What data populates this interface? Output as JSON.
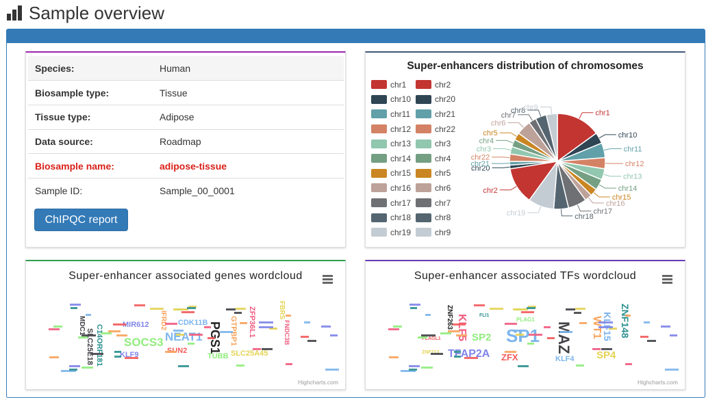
{
  "header": {
    "title": "Sample overview"
  },
  "info": {
    "rows": [
      {
        "key": "Species:",
        "value": "Human"
      },
      {
        "key": "Biosample type:",
        "value": "Tissue"
      },
      {
        "key": "Tissue type:",
        "value": "Adipose"
      },
      {
        "key": "Data source:",
        "value": "Roadmap"
      },
      {
        "key": "Biosample name:",
        "value": "adipose-tissue"
      },
      {
        "key": "Sample ID:",
        "value": "Sample_00_0001"
      }
    ],
    "button_label": "ChIPQC report"
  },
  "colors": {
    "heading": "#337ab7",
    "highlight": "#d9201a"
  },
  "chart_data": {
    "type": "pie",
    "title": "Super-enhancers distribution of chromosomes",
    "legend": [
      "chr1",
      "chr2",
      "chr10",
      "chr20",
      "chr11",
      "chr21",
      "chr12",
      "chr22",
      "chr13",
      "chr3",
      "chr14",
      "chr4",
      "chr15",
      "chr5",
      "chr16",
      "chr6",
      "chr17",
      "chr7",
      "chr18",
      "chr8",
      "chr19",
      "chr9"
    ],
    "slices": [
      {
        "name": "chr1",
        "value": 12,
        "color": "#c23531"
      },
      {
        "name": "chr10",
        "value": 3,
        "color": "#2f4554"
      },
      {
        "name": "chr11",
        "value": 4,
        "color": "#61a0a8"
      },
      {
        "name": "chr12",
        "value": 3,
        "color": "#d48265"
      },
      {
        "name": "chr13",
        "value": 3,
        "color": "#91c7ae"
      },
      {
        "name": "chr14",
        "value": 3,
        "color": "#749f83"
      },
      {
        "name": "chr15",
        "value": 2,
        "color": "#ca8622"
      },
      {
        "name": "chr16",
        "value": 2,
        "color": "#bda29a"
      },
      {
        "name": "chr17",
        "value": 5,
        "color": "#6e7074"
      },
      {
        "name": "chr18",
        "value": 4,
        "color": "#546570"
      },
      {
        "name": "chr19",
        "value": 7,
        "color": "#c4ccd3"
      },
      {
        "name": "chr2",
        "value": 10,
        "color": "#c23531"
      },
      {
        "name": "chr20",
        "value": 1,
        "color": "#2f4554"
      },
      {
        "name": "chr21",
        "value": 1,
        "color": "#61a0a8"
      },
      {
        "name": "chr22",
        "value": 2,
        "color": "#d48265"
      },
      {
        "name": "chr3",
        "value": 2,
        "color": "#91c7ae"
      },
      {
        "name": "chr4",
        "value": 2,
        "color": "#749f83"
      },
      {
        "name": "chr5",
        "value": 2,
        "color": "#ca8622"
      },
      {
        "name": "chr6",
        "value": 4,
        "color": "#bda29a"
      },
      {
        "name": "chr7",
        "value": 2,
        "color": "#6e7074"
      },
      {
        "name": "chr8",
        "value": 3,
        "color": "#546570"
      },
      {
        "name": "chr9",
        "value": 3,
        "color": "#c4ccd3"
      }
    ]
  },
  "genes_wordcloud": {
    "title": "Super-enhancer associated genes wordcloud",
    "credit": "Highcharts.com",
    "words": [
      {
        "text": "NEAT1",
        "color": "#7cb5ec",
        "size": 17
      },
      {
        "text": "SOCS3",
        "color": "#90ed7d",
        "size": 17
      },
      {
        "text": "PGS1",
        "color": "#222222",
        "size": 18
      },
      {
        "text": "CDK11B",
        "color": "#7cb5ec",
        "size": 11
      },
      {
        "text": "C14ORF181",
        "color": "#2b908f",
        "size": 11
      },
      {
        "text": "SLC25A45",
        "color": "#e4d354",
        "size": 11
      },
      {
        "text": "ZFP36L1",
        "color": "#f15c80",
        "size": 11
      },
      {
        "text": "MIR612",
        "color": "#8085e9",
        "size": 11
      },
      {
        "text": "KLF9",
        "color": "#8085e9",
        "size": 11
      },
      {
        "text": "SUN2",
        "color": "#f45b5b",
        "size": 11
      },
      {
        "text": "TUBB",
        "color": "#90ed7d",
        "size": 11
      },
      {
        "text": "GTPBP1",
        "color": "#f7a35c",
        "size": 11
      },
      {
        "text": "SLC25E18",
        "color": "#434348",
        "size": 11
      },
      {
        "text": "IFRD2",
        "color": "#f7a35c",
        "size": 10
      },
      {
        "text": "FBRS",
        "color": "#e4d354",
        "size": 10
      },
      {
        "text": "MDC1",
        "color": "#434348",
        "size": 10
      },
      {
        "text": "FNDC3B",
        "color": "#f15c80",
        "size": 9
      }
    ]
  },
  "tfs_wordcloud": {
    "title": "Super-enhancer associated TFs wordcloud",
    "credit": "Highcharts.com",
    "words": [
      {
        "text": "SP1",
        "color": "#7cb5ec",
        "size": 26
      },
      {
        "text": "MAZ",
        "color": "#434348",
        "size": 22
      },
      {
        "text": "TFAP2A",
        "color": "#8085e9",
        "size": 16
      },
      {
        "text": "KLF5",
        "color": "#f15c80",
        "size": 16
      },
      {
        "text": "SP2",
        "color": "#90ed7d",
        "size": 15
      },
      {
        "text": "WT1",
        "color": "#f7a35c",
        "size": 16
      },
      {
        "text": "KLF15",
        "color": "#7cb5ec",
        "size": 14
      },
      {
        "text": "ZNF148",
        "color": "#2b908f",
        "size": 14
      },
      {
        "text": "SP4",
        "color": "#e4d354",
        "size": 15
      },
      {
        "text": "ZFX",
        "color": "#f45b5b",
        "size": 13
      },
      {
        "text": "KLF4",
        "color": "#7cb5ec",
        "size": 11
      },
      {
        "text": "ZNF263",
        "color": "#222222",
        "size": 10
      },
      {
        "text": "PLAG1",
        "color": "#90ed7d",
        "size": 8
      },
      {
        "text": "FLI1",
        "color": "#2b908f",
        "size": 7
      },
      {
        "text": "ZNF213",
        "color": "#e4d354",
        "size": 7
      },
      {
        "text": "PLAGL1",
        "color": "#f45b5b",
        "size": 7
      }
    ]
  }
}
